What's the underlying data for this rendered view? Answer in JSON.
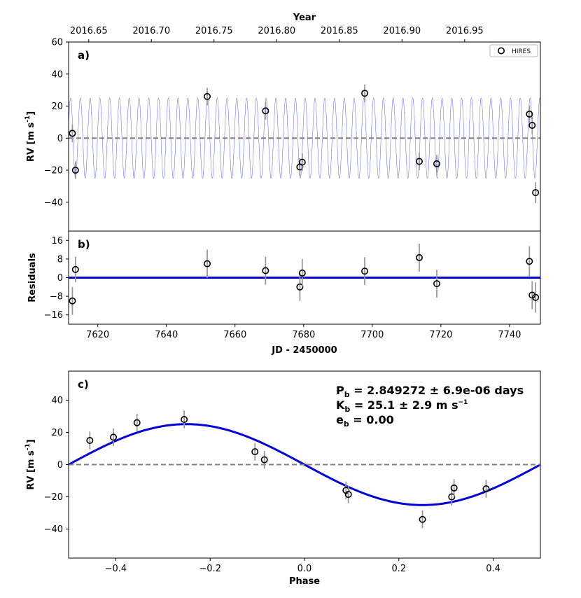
{
  "chart_data": [
    {
      "panel": "a)",
      "type": "scatter",
      "xlabel": "JD - 2450000",
      "ylabel": "RV [m s",
      "ylabel_sup": "-1",
      "ylabel_end": "]",
      "top_axis_label": "Year",
      "top_ticks": [
        "2016.65",
        "2016.70",
        "2016.75",
        "2016.80",
        "2016.85",
        "2016.90",
        "2016.95"
      ],
      "top_tick_jd": [
        7617.36,
        7635.62,
        7653.88,
        7672.15,
        7690.41,
        7708.67,
        7726.93
      ],
      "xlim": [
        7611.5,
        7749.0
      ],
      "ylim": [
        -58,
        60
      ],
      "yticks": [
        -40,
        -20,
        0,
        20,
        40,
        60
      ],
      "legend": "HIRES",
      "points": [
        {
          "x": 7612.6,
          "y": 3.0,
          "err": 5.5
        },
        {
          "x": 7613.5,
          "y": -20.0,
          "err": 5.5
        },
        {
          "x": 7651.9,
          "y": 26.0,
          "err": 5.5
        },
        {
          "x": 7668.9,
          "y": 17.0,
          "err": 5.5
        },
        {
          "x": 7678.9,
          "y": -18.0,
          "err": 5.5
        },
        {
          "x": 7679.6,
          "y": -15.0,
          "err": 5.5
        },
        {
          "x": 7697.8,
          "y": 28.0,
          "err": 5.5
        },
        {
          "x": 7713.7,
          "y": -14.5,
          "err": 5.5
        },
        {
          "x": 7718.8,
          "y": -16.0,
          "err": 5.5
        },
        {
          "x": 7745.8,
          "y": 15.0,
          "err": 5.5
        },
        {
          "x": 7746.6,
          "y": 8.0,
          "err": 5.5
        },
        {
          "x": 7747.6,
          "y": -34.0,
          "err": 6.5
        }
      ],
      "model": {
        "K": 25.1,
        "P": 2.849272,
        "phase_ref_jd": 7613.5
      }
    },
    {
      "panel": "b)",
      "type": "scatter",
      "xlabel": "JD - 2450000",
      "ylabel": "Residuals",
      "xlim": [
        7611.5,
        7749.0
      ],
      "xticks": [
        7620,
        7640,
        7660,
        7680,
        7700,
        7720,
        7740
      ],
      "ylim": [
        -20,
        20
      ],
      "yticks": [
        -16,
        -8,
        0,
        8,
        16
      ],
      "points": [
        {
          "x": 7612.6,
          "y": -10.0,
          "err": 6.0
        },
        {
          "x": 7613.5,
          "y": 3.5,
          "err": 5.5
        },
        {
          "x": 7651.9,
          "y": 6.0,
          "err": 6.0
        },
        {
          "x": 7668.9,
          "y": 3.0,
          "err": 6.0
        },
        {
          "x": 7678.9,
          "y": -4.0,
          "err": 6.0
        },
        {
          "x": 7679.6,
          "y": 2.0,
          "err": 6.0
        },
        {
          "x": 7697.8,
          "y": 2.8,
          "err": 6.0
        },
        {
          "x": 7713.7,
          "y": 8.6,
          "err": 6.0
        },
        {
          "x": 7718.8,
          "y": -2.6,
          "err": 6.0
        },
        {
          "x": 7745.8,
          "y": 7.0,
          "err": 6.5
        },
        {
          "x": 7746.6,
          "y": -7.5,
          "err": 6.0
        },
        {
          "x": 7747.6,
          "y": -8.5,
          "err": 6.5
        }
      ]
    },
    {
      "panel": "c)",
      "type": "scatter",
      "xlabel": "Phase",
      "ylabel": "RV [m s",
      "ylabel_sup": "-1",
      "ylabel_end": "]",
      "xlim": [
        -0.5,
        0.5
      ],
      "xticks": [
        -0.4,
        -0.2,
        0.0,
        0.2,
        0.4
      ],
      "xtick_labels": [
        "−0.4",
        "−0.2",
        "0.0",
        "0.2",
        "0.4"
      ],
      "ylim": [
        -58,
        58
      ],
      "yticks": [
        -40,
        -20,
        0,
        20,
        40
      ],
      "ytick_labels": [
        "−40",
        "−20",
        "0",
        "20",
        "40"
      ],
      "points": [
        {
          "x": -0.455,
          "y": 15.0,
          "err": 5.5
        },
        {
          "x": -0.405,
          "y": 17.0,
          "err": 5.5
        },
        {
          "x": -0.355,
          "y": 26.0,
          "err": 5.5
        },
        {
          "x": -0.255,
          "y": 28.0,
          "err": 5.5
        },
        {
          "x": -0.105,
          "y": 8.0,
          "err": 5.5
        },
        {
          "x": -0.085,
          "y": 3.0,
          "err": 5.5
        },
        {
          "x": 0.088,
          "y": -16.0,
          "err": 5.5
        },
        {
          "x": 0.093,
          "y": -18.5,
          "err": 5.5
        },
        {
          "x": 0.25,
          "y": -34.0,
          "err": 5.5
        },
        {
          "x": 0.312,
          "y": -20.0,
          "err": 5.5
        },
        {
          "x": 0.317,
          "y": -14.5,
          "err": 5.5
        },
        {
          "x": 0.385,
          "y": -15.0,
          "err": 5.5
        }
      ],
      "model": {
        "K": 25.1
      }
    }
  ],
  "annotations": {
    "period_sym": "P",
    "period_sub": "b",
    "period_text": " = 2.849272 ± 6.9e-06 days",
    "amp_sym": "K",
    "amp_sub": "b",
    "amp_text": " = 25.1 ± 2.9 m s",
    "amp_sup": "−1",
    "ecc_sym": "e",
    "ecc_sub": "b",
    "ecc_text": " = 0.00"
  },
  "colors": {
    "model": "#0000dd",
    "zero_line": "#808080",
    "errorbar": "#999999",
    "points": "#000000"
  }
}
